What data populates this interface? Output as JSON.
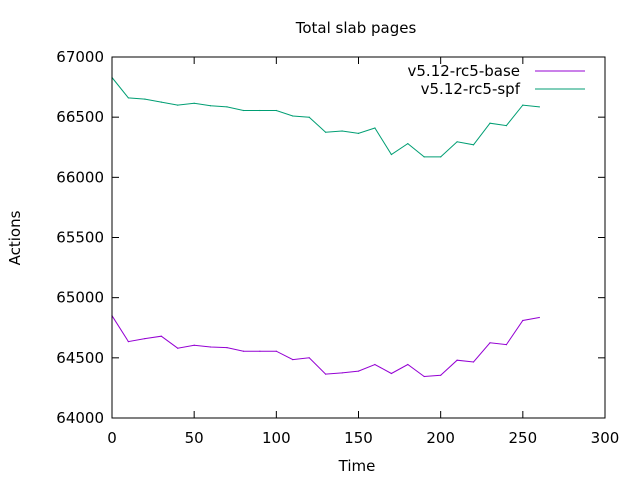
{
  "chart_data": {
    "type": "line",
    "title": "Total slab pages",
    "xlabel": "Time",
    "ylabel": "Actions",
    "xlim": [
      0,
      300
    ],
    "ylim": [
      64000,
      67000
    ],
    "xticks": [
      0,
      50,
      100,
      150,
      200,
      250,
      300
    ],
    "yticks": [
      64000,
      64500,
      65000,
      65500,
      66000,
      66500,
      67000
    ],
    "grid": false,
    "legend_position": "top-right",
    "series": [
      {
        "name": "v5.12-rc5-base",
        "color": "#9400d3",
        "x": [
          0,
          10,
          20,
          30,
          40,
          50,
          60,
          70,
          80,
          90,
          100,
          110,
          120,
          130,
          140,
          150,
          160,
          170,
          180,
          190,
          200,
          210,
          220,
          230,
          240,
          250,
          260
        ],
        "y": [
          64850,
          64635,
          64660,
          64680,
          64580,
          64605,
          64590,
          64585,
          64555,
          64555,
          64555,
          64485,
          64500,
          64365,
          64375,
          64390,
          64445,
          64370,
          64445,
          64345,
          64355,
          64480,
          64465,
          64625,
          64610,
          64810,
          64835
        ]
      },
      {
        "name": "v5.12-rc5-spf",
        "color": "#009e73",
        "x": [
          0,
          10,
          20,
          30,
          40,
          50,
          60,
          70,
          80,
          90,
          100,
          110,
          120,
          130,
          140,
          150,
          160,
          170,
          180,
          190,
          200,
          210,
          220,
          230,
          240,
          250,
          260
        ],
        "y": [
          66830,
          66660,
          66650,
          66625,
          66600,
          66615,
          66595,
          66585,
          66555,
          66555,
          66555,
          66510,
          66500,
          66375,
          66385,
          66365,
          66410,
          66190,
          66280,
          66170,
          66170,
          66295,
          66270,
          66450,
          66430,
          66600,
          66585
        ]
      }
    ]
  }
}
